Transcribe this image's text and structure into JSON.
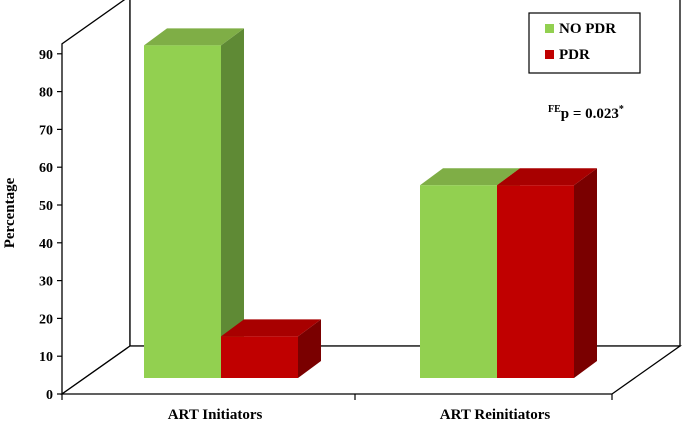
{
  "chart_data": {
    "type": "bar",
    "style": "3d-clustered",
    "ylabel": "Percentage",
    "ylim": [
      0,
      90
    ],
    "yticks": [
      "0",
      "10",
      "20",
      "30",
      "40",
      "50",
      "60",
      "70",
      "80",
      "90"
    ],
    "categories": [
      "ART Initiators",
      "ART Reinitiators"
    ],
    "series": [
      {
        "name": "NO PDR",
        "values": [
          88,
          51
        ],
        "color": "#92d050",
        "color_top": "#7fae46",
        "color_side": "#5f8a35"
      },
      {
        "name": "PDR",
        "values": [
          11,
          51
        ],
        "color": "#c00000",
        "color_top": "#a80000",
        "color_side": "#7a0000"
      }
    ],
    "legend_position": "top-right",
    "annotation": {
      "sup": "FE",
      "text": "p = 0.023",
      "mark": "*"
    },
    "grid": false
  }
}
